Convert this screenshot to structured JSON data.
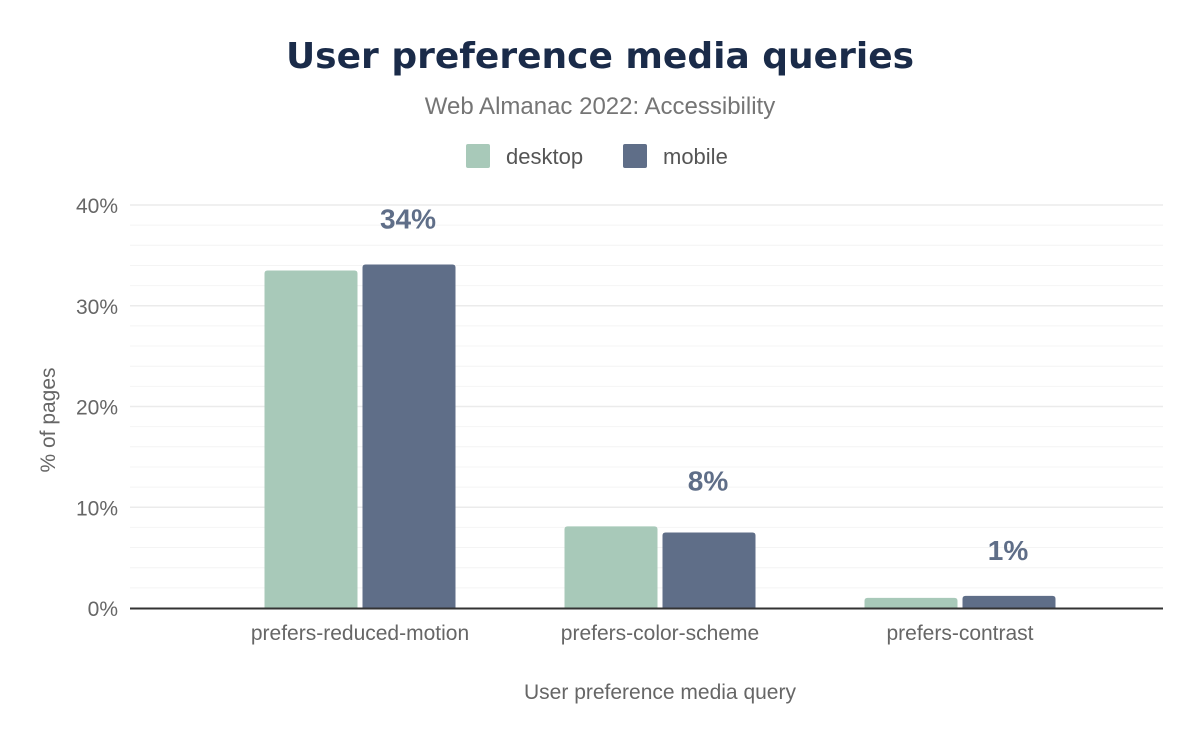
{
  "chart_data": {
    "type": "bar",
    "title": "User preference media queries",
    "subtitle": "Web Almanac 2022: Accessibility",
    "xlabel": "User preference media query",
    "ylabel": "% of pages",
    "categories": [
      "prefers-reduced-motion",
      "prefers-color-scheme",
      "prefers-contrast"
    ],
    "series": [
      {
        "name": "desktop",
        "color": "#a8c9b9",
        "values": [
          33.5,
          8.1,
          1.0
        ]
      },
      {
        "name": "mobile",
        "color": "#5f6e88",
        "values": [
          34.1,
          7.5,
          1.2
        ]
      }
    ],
    "data_labels": [
      "34%",
      "8%",
      "1%"
    ],
    "yticks": [
      0,
      10,
      20,
      30,
      40
    ],
    "ytick_labels": [
      "0%",
      "10%",
      "20%",
      "30%",
      "40%"
    ],
    "ylim": [
      0,
      40
    ],
    "grid": true,
    "legend_position": "top-center"
  }
}
